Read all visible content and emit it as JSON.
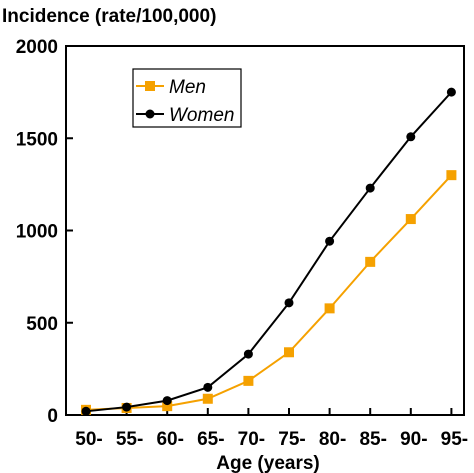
{
  "chart_data": {
    "type": "line",
    "title": "Incidence (rate/100,000)",
    "xlabel": "Age (years)",
    "ylabel": "Incidence (rate/100,000)",
    "categories": [
      "50-",
      "55-",
      "60-",
      "65-",
      "70-",
      "75-",
      "80-",
      "85-",
      "90-",
      "95-"
    ],
    "ylim": [
      0,
      2000
    ],
    "yticks": [
      0,
      500,
      1000,
      1500,
      2000
    ],
    "grid": false,
    "legend_position": "top-left",
    "series": [
      {
        "name": "Men",
        "color": "#f5a100",
        "marker": "square",
        "values": [
          28,
          38,
          48,
          88,
          185,
          340,
          578,
          830,
          1062,
          1300
        ]
      },
      {
        "name": "Women",
        "color": "#000000",
        "marker": "circle",
        "values": [
          20,
          43,
          78,
          150,
          330,
          608,
          942,
          1230,
          1508,
          1750
        ]
      }
    ]
  }
}
